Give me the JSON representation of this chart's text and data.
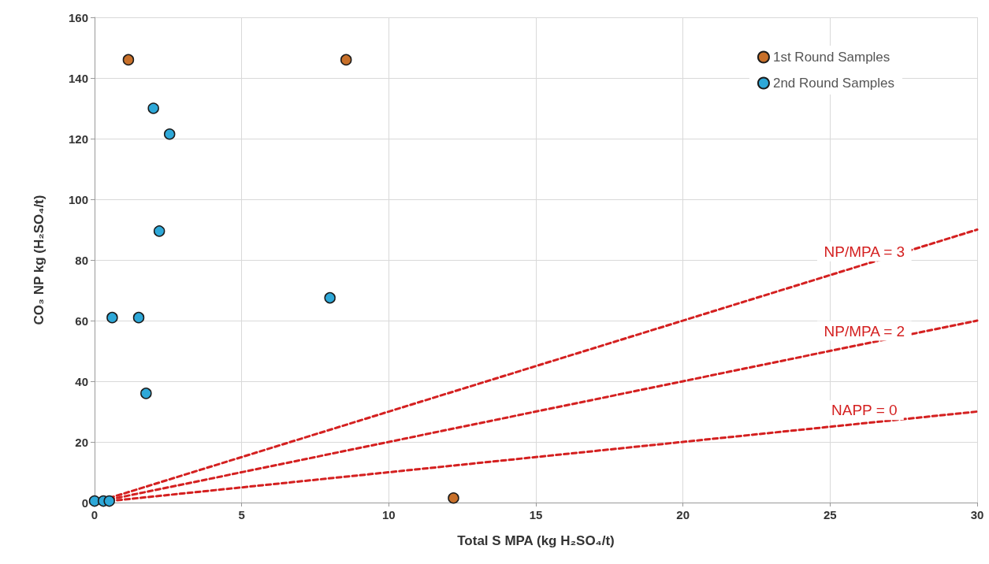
{
  "chart_data": {
    "type": "scatter",
    "xlabel": "Total S MPA (kg H₂SO₄/t)",
    "ylabel": "CO₃ NP kg (H₂SO₄/t)",
    "xlim": [
      0,
      30
    ],
    "xticks": [
      0,
      5,
      10,
      15,
      20,
      25,
      30
    ],
    "ylim": [
      0,
      160
    ],
    "yticks": [
      0,
      20,
      40,
      60,
      80,
      100,
      120,
      140,
      160
    ],
    "grid": true,
    "legend": "top right",
    "marker": "circle",
    "series": [
      {
        "name": "1st Round Samples",
        "color": "#c8702a",
        "x": [
          1.15,
          8.55,
          12.2
        ],
        "values": [
          146,
          146,
          1.5
        ]
      },
      {
        "name": "2nd Round Samples",
        "color": "#2ea8d8",
        "x": [
          0,
          0.3,
          0.5,
          2.0,
          2.55,
          2.2,
          0.6,
          1.5,
          1.75,
          8.0
        ],
        "values": [
          0.5,
          0.5,
          0.5,
          130,
          121.5,
          89.5,
          61,
          61,
          36,
          67.5
        ]
      },
      {
        "name": "NP/MPA = 3",
        "type": "line",
        "color": "#d42020",
        "line_style": "dashed",
        "marker": "none",
        "x": [
          0.5,
          30
        ],
        "values": [
          1.5,
          90
        ]
      },
      {
        "name": "NP/MPA = 2",
        "type": "line",
        "color": "#d42020",
        "line_style": "dashed",
        "marker": "none",
        "x": [
          0.5,
          30
        ],
        "values": [
          1,
          60
        ]
      },
      {
        "name": "NAPP = 0",
        "type": "line",
        "color": "#d42020",
        "line_style": "dashed",
        "marker": "none",
        "x": [
          0.5,
          30
        ],
        "values": [
          0.5,
          30
        ]
      }
    ]
  }
}
